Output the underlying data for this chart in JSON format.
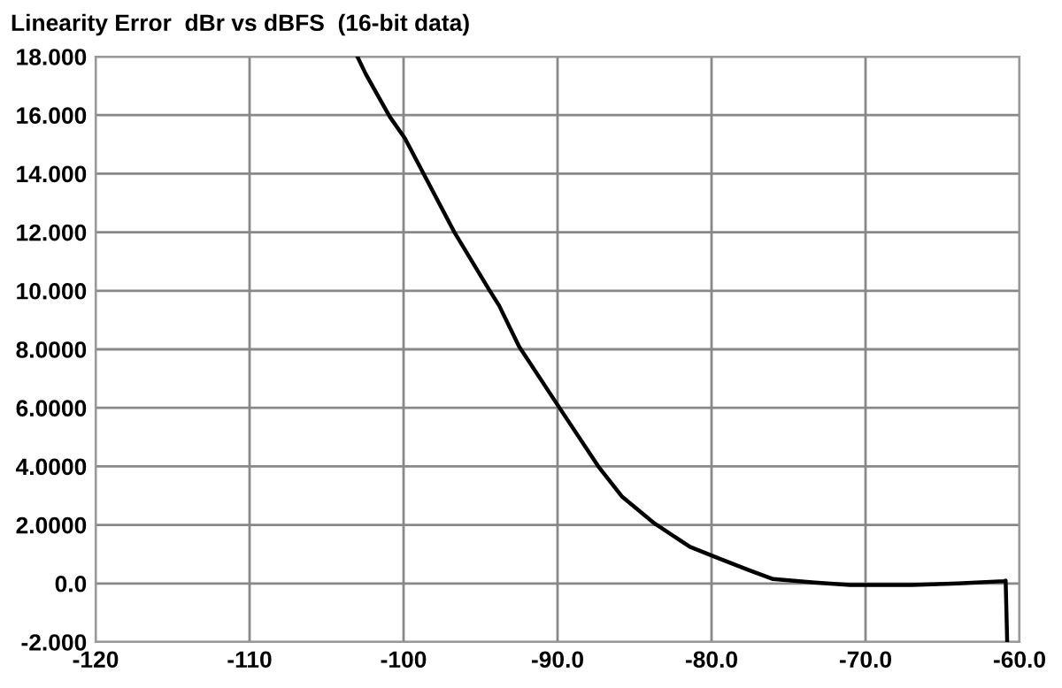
{
  "chart_data": {
    "type": "line",
    "title": "Linearity Error  dBr vs dBFS  (16-bit data)",
    "series": [
      {
        "color": "#000000",
        "x": [
          -103.0,
          -102.45,
          -100.9,
          -99.9,
          -98.6,
          -96.7,
          -94.4,
          -93.8,
          -92.5,
          -90.0,
          -87.3,
          -85.8,
          -83.7,
          -81.4,
          -79.5,
          -77.55,
          -76.0,
          -73.3,
          -71.0,
          -70.0,
          -67.0,
          -64.0,
          -61.0,
          -60.9,
          -60.8
        ],
        "values": [
          18.0,
          17.4,
          15.95,
          15.2,
          13.9,
          12.0,
          10.0,
          9.5,
          8.1,
          6.1,
          3.96,
          2.96,
          2.05,
          1.25,
          0.85,
          0.45,
          0.15,
          0.03,
          -0.05,
          -0.05,
          -0.05,
          0.0,
          0.08,
          0.1,
          -2.0
        ]
      }
    ],
    "xlim": [
      -120,
      -60
    ],
    "ylim": [
      -2,
      18
    ],
    "xticks": [
      -120,
      -110,
      -100,
      {
        "value": -90,
        "label": "-90.0"
      },
      {
        "value": -80,
        "label": "-80.0"
      },
      {
        "value": -70,
        "label": "-70.0"
      },
      {
        "value": -60,
        "label": "-60.0"
      }
    ],
    "yticks": [
      {
        "value": -2,
        "label": "-2.000"
      },
      {
        "value": 0,
        "label": "0.0"
      },
      {
        "value": 2,
        "label": "2.0000"
      },
      {
        "value": 4,
        "label": "4.0000"
      },
      {
        "value": 6,
        "label": "6.0000"
      },
      {
        "value": 8,
        "label": "8.0000"
      },
      {
        "value": 10,
        "label": "10.000"
      },
      {
        "value": 12,
        "label": "12.000"
      },
      {
        "value": 14,
        "label": "14.000"
      },
      {
        "value": 16,
        "label": "16.000"
      },
      {
        "value": 18,
        "label": "18.000"
      }
    ],
    "grid": true,
    "legend": false,
    "marker": "none",
    "line_style": "solid"
  }
}
